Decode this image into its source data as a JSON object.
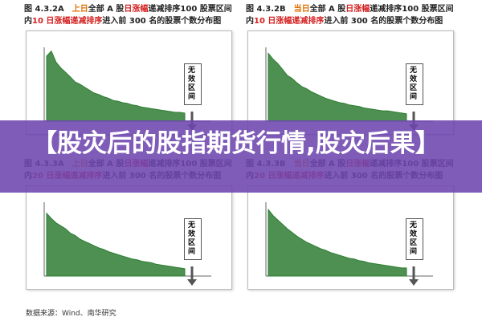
{
  "figures": [
    {
      "label": "图 4.3.2A",
      "title_parts": [
        {
          "text": "上日",
          "color": "#e07000"
        },
        {
          "text": "全部 A 股",
          "color": "#222222"
        },
        {
          "text": "日涨幅",
          "color": "#d42020"
        },
        {
          "text": "递减排序",
          "color": "#222222"
        },
        {
          "text": "100 股票区间内",
          "color": "#222222"
        },
        {
          "text": "10 日涨幅递减排序",
          "color": "#d42020"
        },
        {
          "text": "进入前 300 名的股票个数分布图",
          "color": "#222222"
        }
      ],
      "annotation": "无效区间",
      "values": [
        88,
        95,
        80,
        72,
        66,
        60,
        53,
        50,
        46,
        42,
        38,
        36,
        33,
        31,
        28,
        27,
        25,
        24,
        22,
        21,
        19,
        18,
        17,
        16,
        15,
        14,
        13,
        12,
        12,
        11
      ]
    },
    {
      "label": "图 4.3.2B",
      "title_parts": [
        {
          "text": "当日",
          "color": "#e07000"
        },
        {
          "text": "全部 A 股",
          "color": "#222222"
        },
        {
          "text": "日涨幅",
          "color": "#d42020"
        },
        {
          "text": "递减排序",
          "color": "#222222"
        },
        {
          "text": "100 股票区间内",
          "color": "#222222"
        },
        {
          "text": "10 日涨幅递减排序",
          "color": "#d42020"
        },
        {
          "text": "进入前 300 名的股票个数分布图",
          "color": "#222222"
        }
      ],
      "annotation": "无效区间",
      "values": [
        92,
        84,
        78,
        70,
        62,
        58,
        52,
        47,
        44,
        40,
        37,
        34,
        31,
        29,
        27,
        25,
        24,
        22,
        21,
        20,
        18,
        17,
        16,
        15,
        14,
        14,
        13,
        12,
        11,
        10
      ]
    },
    {
      "label": "图 4.3.3A",
      "title_parts": [
        {
          "text": "上日",
          "color": "#e07000"
        },
        {
          "text": "全部 A 股",
          "color": "#222222"
        },
        {
          "text": "日涨幅",
          "color": "#d42020"
        },
        {
          "text": "递减排序",
          "color": "#222222"
        },
        {
          "text": "100 股票区间内",
          "color": "#222222"
        },
        {
          "text": "20 日涨幅递减排序",
          "color": "#d42020"
        },
        {
          "text": "进入前 300 名的股票个数分布图",
          "color": "#222222"
        }
      ],
      "annotation": "无效区间",
      "values": [
        85,
        78,
        72,
        68,
        64,
        58,
        55,
        50,
        47,
        44,
        41,
        38,
        36,
        33,
        31,
        29,
        27,
        25,
        23,
        22,
        20,
        19,
        18,
        16,
        15,
        14,
        13,
        12,
        11,
        10
      ]
    },
    {
      "label": "图 4.3.3B",
      "title_parts": [
        {
          "text": "当日",
          "color": "#e07000"
        },
        {
          "text": "全部 A 股",
          "color": "#222222"
        },
        {
          "text": "日涨幅",
          "color": "#d42020"
        },
        {
          "text": "递减排序",
          "color": "#222222"
        },
        {
          "text": "100 股票区间内",
          "color": "#222222"
        },
        {
          "text": "20 日涨幅递减排序",
          "color": "#d42020"
        },
        {
          "text": "进入前 300 名的股票个数分布图",
          "color": "#222222"
        }
      ],
      "annotation": "无效区间",
      "values": [
        90,
        82,
        76,
        70,
        64,
        59,
        54,
        50,
        46,
        43,
        40,
        37,
        35,
        32,
        30,
        28,
        26,
        24,
        23,
        21,
        20,
        18,
        17,
        16,
        15,
        14,
        13,
        12,
        11,
        11
      ]
    }
  ],
  "ylim": [
    0,
    100
  ],
  "area_color": "#2e7d32",
  "banner": "【股灾后的股指期货行情,股灾后果】",
  "source": "数据来源：Wind、南华研究"
}
